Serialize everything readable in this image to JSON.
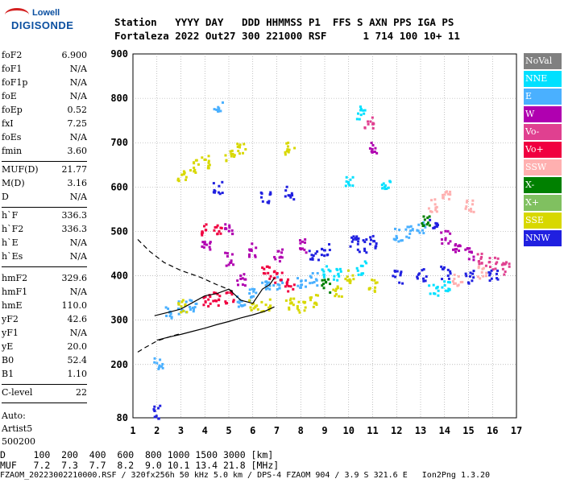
{
  "logo": {
    "line1": "Lowell",
    "line2": "DIGISONDE"
  },
  "header": {
    "line1": "Station   YYYY DAY   DDD HHMMSS P1  FFS S AXN PPS IGA PS",
    "line2": "Fortaleza 2022 Out27 300 221000 RSF      1 714 100 10+ 11"
  },
  "params_group1": [
    {
      "k": "foF2",
      "v": "6.900"
    },
    {
      "k": "foF1",
      "v": "N/A"
    },
    {
      "k": "foF1p",
      "v": "N/A"
    },
    {
      "k": "foE",
      "v": "N/A"
    },
    {
      "k": "foEp",
      "v": "0.52"
    },
    {
      "k": "fxI",
      "v": "7.25"
    },
    {
      "k": "foEs",
      "v": "N/A"
    },
    {
      "k": "fmin",
      "v": "3.60"
    }
  ],
  "params_group2": [
    {
      "k": "MUF(D)",
      "v": "21.77"
    },
    {
      "k": "M(D)",
      "v": "3.16"
    },
    {
      "k": "D",
      "v": "N/A"
    }
  ],
  "params_group3": [
    {
      "k": "h`F",
      "v": "336.3"
    },
    {
      "k": "h`F2",
      "v": "336.3"
    },
    {
      "k": "h`E",
      "v": "N/A"
    },
    {
      "k": "h`Es",
      "v": "N/A"
    }
  ],
  "params_group4": [
    {
      "k": "hmF2",
      "v": "329.6"
    },
    {
      "k": "hmF1",
      "v": "N/A"
    },
    {
      "k": "hmE",
      "v": "110.0"
    },
    {
      "k": "yF2",
      "v": "42.6"
    },
    {
      "k": "yF1",
      "v": "N/A"
    },
    {
      "k": "yE",
      "v": "20.0"
    },
    {
      "k": "B0",
      "v": "52.4"
    },
    {
      "k": "B1",
      "v": "1.10"
    }
  ],
  "clevel": {
    "k": "C-level",
    "v": "22"
  },
  "auto": {
    "line1": "Auto:",
    "line2": "Artist5",
    "line3": "500200"
  },
  "legend": [
    {
      "label": "NoVal",
      "color": "#808080"
    },
    {
      "label": "NNE",
      "color": "#00e0ff"
    },
    {
      "label": "E",
      "color": "#4ab0ff"
    },
    {
      "label": "W",
      "color": "#b000b0"
    },
    {
      "label": "Vo-",
      "color": "#e04090"
    },
    {
      "label": "Vo+",
      "color": "#f00040"
    },
    {
      "label": "SSW",
      "color": "#ffb0b0"
    },
    {
      "label": "X-",
      "color": "#008000"
    },
    {
      "label": "X+",
      "color": "#80c060"
    },
    {
      "label": "SSE",
      "color": "#d8d800"
    },
    {
      "label": "NNW",
      "color": "#2020e0"
    }
  ],
  "footer": {
    "d_row": "D     100  200  400  600  800 1000 1500 3000 [km]",
    "muf_row": "MUF   7.2  7.3  7.7  8.2  9.0 10.1 13.4 21.8 [MHz]",
    "info": "FZAOM_20223002210000.RSF / 320fx256h 50 kHz 5.0 km / DPS-4 FZAOM 904 / 3.9 S 321.6 E   Ion2Png 1.3.20"
  },
  "chart_data": {
    "type": "scatter",
    "title": "",
    "xlabel": "",
    "ylabel": "",
    "xlim": [
      1,
      17
    ],
    "ylim": [
      80,
      900
    ],
    "xticks": [
      1,
      2,
      3,
      4,
      5,
      6,
      7,
      8,
      9,
      10,
      11,
      12,
      13,
      14,
      15,
      16,
      17
    ],
    "yticks": [
      80,
      200,
      300,
      400,
      500,
      600,
      700,
      800,
      900
    ],
    "grid": true,
    "trace_profile": {
      "x": [
        1.9,
        2.5,
        3.0,
        3.5,
        4.0,
        4.5,
        5.0,
        5.5,
        6.0,
        6.4,
        6.7,
        6.9
      ],
      "y": [
        310,
        318,
        325,
        340,
        355,
        360,
        370,
        345,
        338,
        370,
        380,
        395
      ]
    },
    "profile_curve": {
      "x": [
        6.9,
        6.5,
        6.0,
        5.5,
        5.0,
        4.5,
        4.0,
        3.5,
        3.0,
        2.5,
        2.0
      ],
      "y": [
        330,
        320,
        312,
        305,
        297,
        290,
        282,
        275,
        268,
        262,
        255
      ]
    },
    "dashed_lower": {
      "x": [
        1.2,
        1.5,
        2.0,
        2.5,
        3.0
      ],
      "y": [
        228,
        238,
        253,
        262,
        270
      ]
    },
    "dashed_upper": {
      "x": [
        1.2,
        1.7,
        2.3,
        3.0,
        3.8,
        4.5,
        5.2
      ],
      "y": [
        482,
        455,
        430,
        412,
        397,
        380,
        365
      ]
    },
    "echoes": [
      {
        "x": 2.5,
        "y": 320,
        "c": "E"
      },
      {
        "x": 3.0,
        "y": 330,
        "c": "E"
      },
      {
        "x": 3.5,
        "y": 335,
        "c": "E"
      },
      {
        "x": 4.0,
        "y": 345,
        "c": "Vo+"
      },
      {
        "x": 4.5,
        "y": 350,
        "c": "Vo+"
      },
      {
        "x": 5.0,
        "y": 355,
        "c": "Vo+"
      },
      {
        "x": 5.5,
        "y": 348,
        "c": "E"
      },
      {
        "x": 6.0,
        "y": 360,
        "c": "E"
      },
      {
        "x": 6.5,
        "y": 375,
        "c": "E"
      },
      {
        "x": 7.0,
        "y": 385,
        "c": "E"
      },
      {
        "x": 7.5,
        "y": 382,
        "c": "Vo+"
      },
      {
        "x": 8.0,
        "y": 390,
        "c": "E"
      },
      {
        "x": 8.5,
        "y": 395,
        "c": "E"
      },
      {
        "x": 9.0,
        "y": 410,
        "c": "NNE"
      },
      {
        "x": 9.5,
        "y": 405,
        "c": "NNE"
      },
      {
        "x": 10.0,
        "y": 400,
        "c": "SSE"
      },
      {
        "x": 10.5,
        "y": 420,
        "c": "NNE"
      },
      {
        "x": 11.0,
        "y": 380,
        "c": "SSE"
      },
      {
        "x": 4.0,
        "y": 505,
        "c": "Vo+"
      },
      {
        "x": 4.5,
        "y": 505,
        "c": "Vo+"
      },
      {
        "x": 5.0,
        "y": 510,
        "c": "W"
      },
      {
        "x": 4.0,
        "y": 470,
        "c": "W"
      },
      {
        "x": 5.0,
        "y": 440,
        "c": "W"
      },
      {
        "x": 6.0,
        "y": 460,
        "c": "W"
      },
      {
        "x": 7.0,
        "y": 450,
        "c": "W"
      },
      {
        "x": 8.0,
        "y": 470,
        "c": "W"
      },
      {
        "x": 8.5,
        "y": 450,
        "c": "NNW"
      },
      {
        "x": 9.0,
        "y": 460,
        "c": "NNW"
      },
      {
        "x": 10.2,
        "y": 480,
        "c": "NNW"
      },
      {
        "x": 10.5,
        "y": 470,
        "c": "NNW"
      },
      {
        "x": 11.0,
        "y": 480,
        "c": "NNW"
      },
      {
        "x": 12.0,
        "y": 495,
        "c": "E"
      },
      {
        "x": 12.5,
        "y": 500,
        "c": "E"
      },
      {
        "x": 13.0,
        "y": 510,
        "c": "E"
      },
      {
        "x": 13.5,
        "y": 520,
        "c": "NNW"
      },
      {
        "x": 14.0,
        "y": 490,
        "c": "W"
      },
      {
        "x": 14.5,
        "y": 470,
        "c": "W"
      },
      {
        "x": 15.0,
        "y": 450,
        "c": "W"
      },
      {
        "x": 15.5,
        "y": 440,
        "c": "Vo-"
      },
      {
        "x": 16.0,
        "y": 430,
        "c": "Vo-"
      },
      {
        "x": 16.5,
        "y": 420,
        "c": "Vo-"
      },
      {
        "x": 12.0,
        "y": 400,
        "c": "NNW"
      },
      {
        "x": 13.0,
        "y": 405,
        "c": "NNW"
      },
      {
        "x": 14.0,
        "y": 410,
        "c": "NNW"
      },
      {
        "x": 15.0,
        "y": 400,
        "c": "NNW"
      },
      {
        "x": 16.0,
        "y": 405,
        "c": "NNW"
      },
      {
        "x": 13.5,
        "y": 370,
        "c": "NNE"
      },
      {
        "x": 14.0,
        "y": 380,
        "c": "NNE"
      },
      {
        "x": 14.5,
        "y": 395,
        "c": "SSW"
      },
      {
        "x": 15.5,
        "y": 410,
        "c": "SSW"
      },
      {
        "x": 3.0,
        "y": 630,
        "c": "SSE"
      },
      {
        "x": 3.5,
        "y": 650,
        "c": "SSE"
      },
      {
        "x": 4.0,
        "y": 660,
        "c": "SSE"
      },
      {
        "x": 5.0,
        "y": 670,
        "c": "SSE"
      },
      {
        "x": 5.5,
        "y": 690,
        "c": "SSE"
      },
      {
        "x": 7.5,
        "y": 690,
        "c": "SSE"
      },
      {
        "x": 4.5,
        "y": 600,
        "c": "NNW"
      },
      {
        "x": 6.5,
        "y": 580,
        "c": "NNW"
      },
      {
        "x": 7.5,
        "y": 590,
        "c": "NNW"
      },
      {
        "x": 10.5,
        "y": 770,
        "c": "NNE"
      },
      {
        "x": 10.8,
        "y": 750,
        "c": "Vo-"
      },
      {
        "x": 11.0,
        "y": 690,
        "c": "W"
      },
      {
        "x": 10.0,
        "y": 610,
        "c": "NNE"
      },
      {
        "x": 11.5,
        "y": 610,
        "c": "NNE"
      },
      {
        "x": 4.5,
        "y": 780,
        "c": "E"
      },
      {
        "x": 2.0,
        "y": 205,
        "c": "E"
      },
      {
        "x": 2.0,
        "y": 95,
        "c": "NNW"
      },
      {
        "x": 3.0,
        "y": 335,
        "c": "SSE"
      },
      {
        "x": 6.0,
        "y": 340,
        "c": "SSE"
      },
      {
        "x": 6.5,
        "y": 335,
        "c": "SSE"
      },
      {
        "x": 7.5,
        "y": 340,
        "c": "SSE"
      },
      {
        "x": 8.0,
        "y": 335,
        "c": "SSE"
      },
      {
        "x": 8.5,
        "y": 345,
        "c": "SSE"
      },
      {
        "x": 9.5,
        "y": 370,
        "c": "SSE"
      },
      {
        "x": 5.5,
        "y": 395,
        "c": "W"
      },
      {
        "x": 6.5,
        "y": 410,
        "c": "Vo+"
      },
      {
        "x": 7.0,
        "y": 400,
        "c": "Vo+"
      },
      {
        "x": 9.0,
        "y": 380,
        "c": "X-"
      },
      {
        "x": 13.5,
        "y": 560,
        "c": "SSW"
      },
      {
        "x": 15.0,
        "y": 560,
        "c": "SSW"
      },
      {
        "x": 14.0,
        "y": 580,
        "c": "SSW"
      },
      {
        "x": 13.2,
        "y": 530,
        "c": "X-"
      }
    ]
  }
}
